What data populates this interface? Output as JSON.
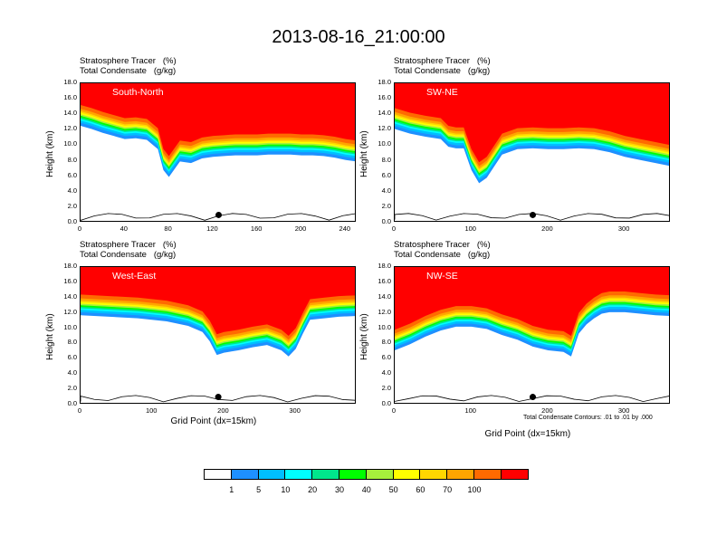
{
  "main_title": "2013-08-16_21:00:00",
  "colorbar": {
    "colors": [
      "#ffffff",
      "#1e90ff",
      "#00bfff",
      "#00ffff",
      "#00e68c",
      "#00ff00",
      "#a6f03c",
      "#ffff00",
      "#ffd700",
      "#ffa500",
      "#ff6a00",
      "#ff0000"
    ],
    "labels": [
      "1",
      "5",
      "10",
      "20",
      "30",
      "40",
      "50",
      "60",
      "70",
      "100"
    ]
  },
  "panels": [
    {
      "name": "South-North",
      "title_line1": "Stratosphere Tracer   (%)",
      "title_line2": "Total Condensate   (g/kg)",
      "ylabel": "Height (km)",
      "xticks": [
        "0",
        "40",
        "80",
        "120",
        "160",
        "200",
        "240"
      ],
      "yticks": [
        "0.0",
        "2.0",
        "4.0",
        "6.0",
        "8.0",
        "10.0",
        "12.0",
        "14.0",
        "16.0",
        "18.0"
      ]
    },
    {
      "name": "SW-NE",
      "title_line1": "Stratosphere Tracer   (%)",
      "title_line2": "Total Condensate   (g/kg)",
      "ylabel": "Height (km)",
      "xticks": [
        "0",
        "100",
        "200",
        "300"
      ],
      "yticks": [
        "0.0",
        "2.0",
        "4.0",
        "6.0",
        "8.0",
        "10.0",
        "12.0",
        "14.0",
        "16.0",
        "18.0"
      ]
    },
    {
      "name": "West-East",
      "title_line1": "Stratosphere Tracer   (%)",
      "title_line2": "Total Condensate   (g/kg)",
      "ylabel": "Height (km)",
      "xticks": [
        "0",
        "100",
        "200",
        "300"
      ],
      "yticks": [
        "0.0",
        "2.0",
        "4.0",
        "6.0",
        "8.0",
        "10.0",
        "12.0",
        "14.0",
        "16.0",
        "18.0"
      ],
      "xlabel": "Grid Point (dx=15km)"
    },
    {
      "name": "NW-SE",
      "title_line1": "Stratosphere Tracer   (%)",
      "title_line2": "Total Condensate   (g/kg)",
      "ylabel": "Height (km)",
      "xticks": [
        "0",
        "100",
        "200",
        "300"
      ],
      "yticks": [
        "0.0",
        "2.0",
        "4.0",
        "6.0",
        "8.0",
        "10.0",
        "12.0",
        "14.0",
        "16.0",
        "18.0"
      ],
      "xlabel": "Grid Point (dx=15km)",
      "note": "Total Condensate Contours: .01 to .01 by .000"
    }
  ],
  "chart_data": [
    {
      "type": "heatmap",
      "title": "South-North",
      "xlabel": "",
      "ylabel": "Height (km)",
      "xlim": [
        0,
        250
      ],
      "ylim": [
        0,
        18
      ],
      "tropopause_x": [
        0,
        10,
        20,
        30,
        40,
        50,
        60,
        70,
        75,
        80,
        90,
        100,
        110,
        120,
        130,
        140,
        150,
        160,
        170,
        180,
        190,
        200,
        210,
        220,
        230,
        240,
        250
      ],
      "tropopause_y": [
        15.2,
        14.8,
        14.3,
        13.9,
        13.5,
        13.6,
        13.4,
        12.2,
        9.5,
        8.6,
        10.6,
        10.4,
        11.0,
        11.2,
        11.3,
        11.4,
        11.4,
        11.4,
        11.5,
        11.5,
        11.5,
        11.4,
        11.4,
        11.3,
        11.1,
        10.8,
        10.6
      ],
      "marker_x": 125
    },
    {
      "type": "heatmap",
      "title": "SW-NE",
      "xlabel": "",
      "ylabel": "Height (km)",
      "xlim": [
        0,
        360
      ],
      "ylim": [
        0,
        18
      ],
      "tropopause_x": [
        0,
        20,
        40,
        60,
        70,
        80,
        90,
        100,
        110,
        120,
        130,
        140,
        160,
        180,
        200,
        220,
        240,
        260,
        280,
        300,
        320,
        340,
        360
      ],
      "tropopause_y": [
        14.8,
        14.2,
        13.8,
        13.5,
        12.5,
        12.3,
        12.3,
        9.5,
        7.8,
        8.5,
        10.0,
        11.5,
        12.2,
        12.3,
        12.2,
        12.2,
        12.3,
        12.2,
        11.8,
        11.2,
        10.8,
        10.4,
        10.0
      ],
      "marker_x": 180
    },
    {
      "type": "heatmap",
      "title": "West-East",
      "xlabel": "Grid Point (dx=15km)",
      "ylabel": "Height (km)",
      "xlim": [
        0,
        385
      ],
      "ylim": [
        0,
        18
      ],
      "tropopause_x": [
        0,
        40,
        80,
        120,
        150,
        170,
        180,
        190,
        200,
        220,
        240,
        260,
        280,
        290,
        300,
        310,
        320,
        340,
        360,
        385
      ],
      "tropopause_y": [
        14.4,
        14.2,
        14.0,
        13.6,
        13.0,
        12.2,
        11.0,
        9.2,
        9.5,
        9.8,
        10.2,
        10.5,
        9.8,
        9.0,
        10.0,
        12.0,
        13.8,
        14.0,
        14.2,
        14.3
      ],
      "marker_x": 192
    },
    {
      "type": "heatmap",
      "title": "NW-SE",
      "xlabel": "Grid Point (dx=15km)",
      "ylabel": "Height (km)",
      "xlim": [
        0,
        360
      ],
      "ylim": [
        0,
        18
      ],
      "tropopause_x": [
        0,
        20,
        40,
        60,
        80,
        100,
        120,
        140,
        160,
        180,
        200,
        220,
        230,
        240,
        250,
        260,
        270,
        280,
        300,
        320,
        340,
        360
      ],
      "tropopause_y": [
        9.8,
        10.6,
        11.6,
        12.4,
        12.9,
        12.9,
        12.6,
        11.8,
        11.2,
        10.3,
        9.8,
        9.6,
        9.0,
        12.0,
        13.2,
        14.0,
        14.6,
        14.8,
        14.8,
        14.6,
        14.4,
        14.3
      ],
      "marker_x": 180
    }
  ]
}
